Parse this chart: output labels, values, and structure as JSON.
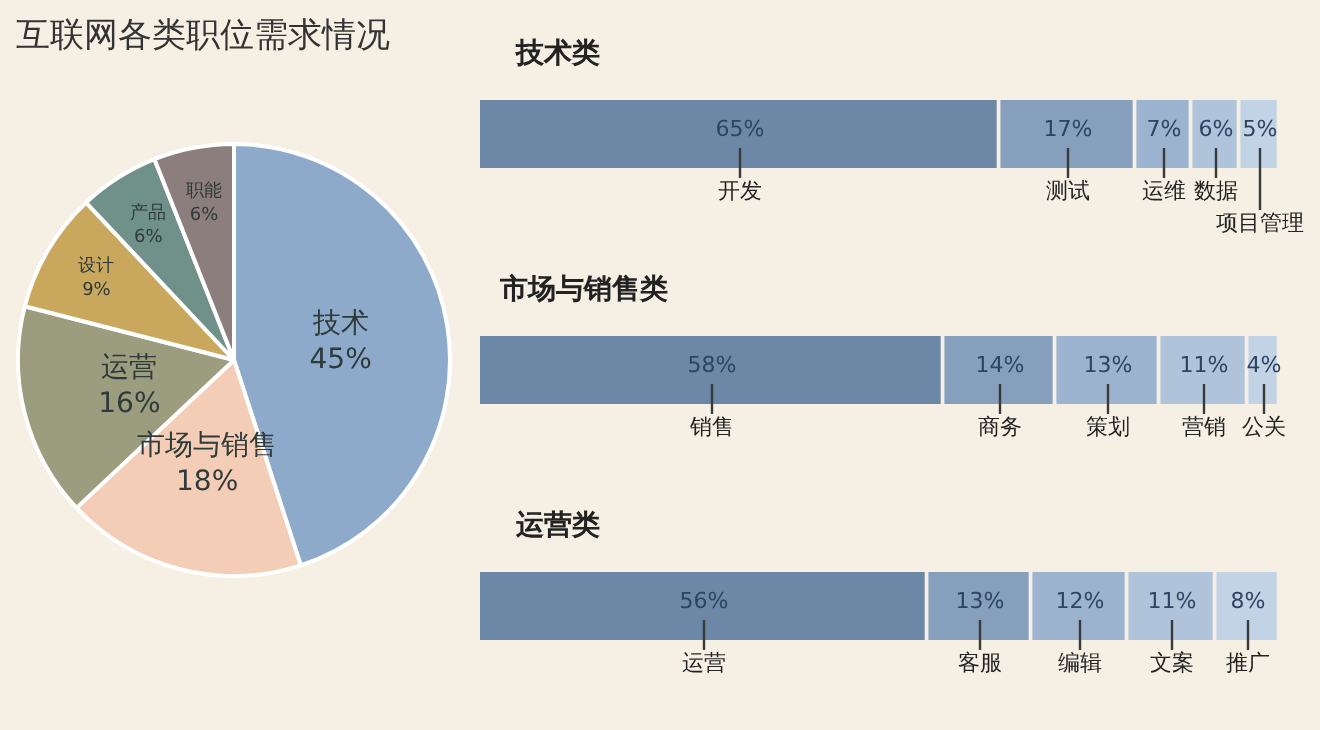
{
  "chart_data": [
    {
      "type": "pie",
      "title": "互联网各类职位需求情况",
      "categories": [
        "技术",
        "市场与销售",
        "运营",
        "设计",
        "产品",
        "职能"
      ],
      "values": [
        45,
        18,
        16,
        9,
        6,
        6
      ],
      "value_labels": [
        "45%",
        "18%",
        "16%",
        "9%",
        "6%",
        "6%"
      ],
      "colors": [
        "#8eaacb",
        "#f3cdb6",
        "#9c9c7e",
        "#c9a85e",
        "#6f9189",
        "#8d7e7e"
      ]
    },
    {
      "type": "bar",
      "orientation": "horizontal",
      "stacked": true,
      "title": "技术类",
      "categories": [
        null
      ],
      "tick_labels": false,
      "series": [
        {
          "name": "开发",
          "color": "#6d87a6",
          "values": [
            65
          ],
          "value_labels": [
            "65%"
          ]
        },
        {
          "name": "测试",
          "color": "#869fbd",
          "values": [
            17
          ],
          "value_labels": [
            "17%"
          ]
        },
        {
          "name": "运维",
          "color": "#9cb3cf",
          "values": [
            7
          ],
          "value_labels": [
            "7%"
          ]
        },
        {
          "name": "数据",
          "color": "#afc3db",
          "values": [
            6
          ],
          "value_labels": [
            "6%"
          ]
        },
        {
          "name": "项目管理",
          "color": "#c3d3e6",
          "values": [
            5
          ],
          "value_labels": [
            "5%"
          ]
        }
      ]
    },
    {
      "type": "bar",
      "orientation": "horizontal",
      "stacked": true,
      "title": "市场与销售类",
      "categories": [
        null
      ],
      "tick_labels": false,
      "series": [
        {
          "name": "销售",
          "color": "#6d87a6",
          "values": [
            58
          ],
          "value_labels": [
            "58%"
          ]
        },
        {
          "name": "商务",
          "color": "#869fbd",
          "values": [
            14
          ],
          "value_labels": [
            "14%"
          ]
        },
        {
          "name": "策划",
          "color": "#9cb3cf",
          "values": [
            13
          ],
          "value_labels": [
            "13%"
          ]
        },
        {
          "name": "营销",
          "color": "#afc3db",
          "values": [
            11
          ],
          "value_labels": [
            "11%"
          ]
        },
        {
          "name": "公关",
          "color": "#c3d3e6",
          "values": [
            4
          ],
          "value_labels": [
            "4%"
          ]
        }
      ]
    },
    {
      "type": "bar",
      "orientation": "horizontal",
      "stacked": true,
      "title": "运营类",
      "categories": [
        null
      ],
      "tick_labels": false,
      "series": [
        {
          "name": "运营",
          "color": "#6d87a6",
          "values": [
            56
          ],
          "value_labels": [
            "56%"
          ]
        },
        {
          "name": "客服",
          "color": "#869fbd",
          "values": [
            13
          ],
          "value_labels": [
            "13%"
          ]
        },
        {
          "name": "编辑",
          "color": "#9cb3cf",
          "values": [
            12
          ],
          "value_labels": [
            "12%"
          ]
        },
        {
          "name": "文案",
          "color": "#afc3db",
          "values": [
            11
          ],
          "value_labels": [
            "11%"
          ]
        },
        {
          "name": "推广",
          "color": "#c3d3e6",
          "values": [
            8
          ],
          "value_labels": [
            "8%"
          ]
        }
      ]
    }
  ]
}
